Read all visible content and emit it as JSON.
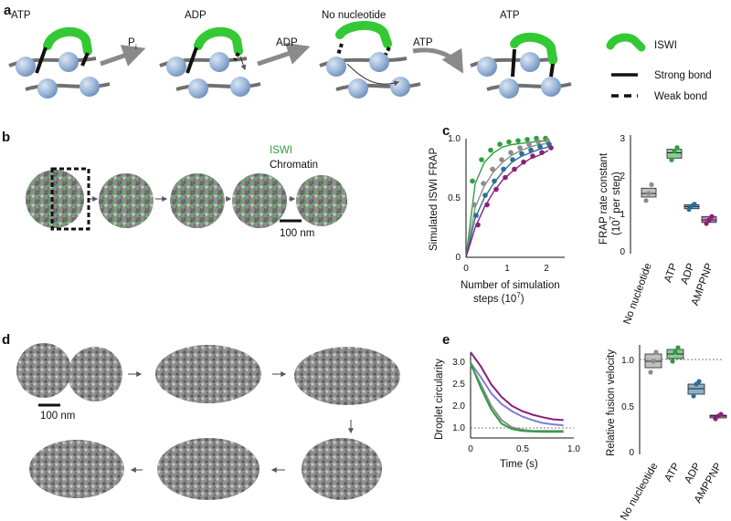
{
  "panel_a": {
    "letter": "a",
    "states": [
      "ATP",
      "ADP",
      "No nucleotide",
      "ATP"
    ],
    "arrow_labels": {
      "pi_main": "P",
      "pi_sub": "i",
      "adp": "ADP",
      "atp": "ATP"
    },
    "legend": {
      "iswi": "ISWI",
      "strong": "Strong bond",
      "weak": "Weak bond"
    }
  },
  "panel_b": {
    "letter": "b",
    "label_iswi": "ISWI",
    "label_chromatin": "Chromatin",
    "scale_bar": "100 nm"
  },
  "panel_c": {
    "letter": "c",
    "left_chart": {
      "ylabel": "Simulated ISWI FRAP",
      "xlabel_line1": "Number of simulation",
      "xlabel_line2": "steps (10",
      "xlabel_sup": "7",
      "xlabel_end": ")",
      "xticks": [
        "0",
        "1",
        "2"
      ],
      "yticks": [
        "0",
        "0.5",
        "1.0"
      ]
    },
    "right_chart": {
      "ylabel_line1": "FRAP rate constant",
      "ylabel_line2": "(10",
      "ylabel_sup": "7",
      "ylabel_end": " per step)",
      "yticks": [
        "0",
        "1",
        "2",
        "3"
      ],
      "categories": [
        "No nucleotide",
        "ATP",
        "ADP",
        "AMPPNP"
      ]
    }
  },
  "panel_d": {
    "letter": "d",
    "scale_bar": "100 nm"
  },
  "panel_e": {
    "letter": "e",
    "left_chart": {
      "ylabel": "Droplet circularity",
      "xlabel": "Time (s)",
      "xticks": [
        "0",
        "0.5",
        "1.0"
      ],
      "yticks": [
        "1.0",
        "1.5",
        "2.0",
        "2.5",
        "3.0"
      ]
    },
    "right_chart": {
      "ylabel": "Relative fusion velocity",
      "yticks": [
        "0",
        "0.5",
        "1.0"
      ],
      "categories": [
        "No nucleotide",
        "ATP",
        "ADP",
        "AMPPNP"
      ]
    }
  },
  "colors": {
    "no_nucleotide": "#8c8c8c",
    "atp": "#2e9e3e",
    "adp": "#2a6f97",
    "amppnp": "#8b1f7a",
    "iswi": "#34c934",
    "nucleosome": "#9ab6d8"
  },
  "chart_data": [
    {
      "type": "line",
      "panel": "c-left",
      "xlabel": "Number of simulation steps (10^7)",
      "ylabel": "Simulated ISWI FRAP",
      "xlim": [
        0,
        2.5
      ],
      "ylim": [
        0,
        1.0
      ],
      "series": [
        {
          "color": "#2e9e3e",
          "x": [
            0,
            0.25,
            0.5,
            0.75,
            1.0,
            1.25,
            1.5,
            1.75,
            2.0,
            2.25
          ],
          "values": [
            0,
            0.62,
            0.8,
            0.88,
            0.93,
            0.95,
            0.96,
            0.97,
            0.98,
            0.98
          ]
        },
        {
          "color": "#8c8c8c",
          "x": [
            0,
            0.25,
            0.5,
            0.75,
            1.0,
            1.25,
            1.5,
            1.75,
            2.0,
            2.25
          ],
          "values": [
            0,
            0.42,
            0.6,
            0.72,
            0.8,
            0.86,
            0.9,
            0.93,
            0.95,
            0.96
          ]
        },
        {
          "color": "#2a6f97",
          "x": [
            0,
            0.25,
            0.5,
            0.75,
            1.0,
            1.25,
            1.5,
            1.75,
            2.0,
            2.25
          ],
          "values": [
            0,
            0.33,
            0.5,
            0.62,
            0.72,
            0.8,
            0.85,
            0.88,
            0.91,
            0.93
          ]
        },
        {
          "color": "#8b1f7a",
          "x": [
            0,
            0.25,
            0.5,
            0.75,
            1.0,
            1.25,
            1.5,
            1.75,
            2.0,
            2.25
          ],
          "values": [
            0,
            0.25,
            0.42,
            0.55,
            0.65,
            0.72,
            0.78,
            0.83,
            0.86,
            0.9
          ]
        }
      ]
    },
    {
      "type": "box",
      "panel": "c-right",
      "ylabel": "FRAP rate constant (10^7 per step)",
      "ylim": [
        0,
        3.2
      ],
      "categories": [
        "No nucleotide",
        "ATP",
        "ADP",
        "AMPPNP"
      ],
      "colors": [
        "#8c8c8c",
        "#2e9e3e",
        "#2a6f97",
        "#8b1f7a"
      ],
      "box_low": [
        1.55,
        2.65,
        1.22,
        0.83
      ],
      "box_high": [
        1.8,
        2.9,
        1.33,
        1.0
      ],
      "median": [
        1.65,
        2.8,
        1.28,
        0.9
      ],
      "points": [
        [
          1.45,
          1.65,
          1.9
        ],
        [
          2.6,
          2.85,
          2.95
        ],
        [
          1.2,
          1.3,
          1.35
        ],
        [
          0.8,
          0.9,
          1.0
        ]
      ]
    },
    {
      "type": "line",
      "panel": "e-left",
      "xlabel": "Time (s)",
      "ylabel": "Droplet circularity",
      "xlim": [
        0,
        1.0
      ],
      "ylim": [
        0.8,
        3.2
      ],
      "series": [
        {
          "color": "#8b1f7a",
          "x": [
            0,
            0.1,
            0.2,
            0.3,
            0.4,
            0.5,
            0.6,
            0.7,
            0.8,
            0.9
          ],
          "values": [
            3.2,
            2.8,
            2.3,
            1.95,
            1.7,
            1.55,
            1.45,
            1.38,
            1.32,
            1.3
          ]
        },
        {
          "color": "#7b7fd6",
          "x": [
            0,
            0.1,
            0.2,
            0.3,
            0.4,
            0.5,
            0.6,
            0.7,
            0.8,
            0.9
          ],
          "values": [
            2.9,
            2.5,
            2.05,
            1.75,
            1.55,
            1.4,
            1.3,
            1.22,
            1.18,
            1.15
          ]
        },
        {
          "color": "#8c8c8c",
          "x": [
            0,
            0.1,
            0.2,
            0.3,
            0.4,
            0.5,
            0.6,
            0.7,
            0.8,
            0.9
          ],
          "values": [
            2.85,
            2.3,
            1.7,
            1.3,
            1.1,
            1.03,
            1.0,
            1.0,
            1.0,
            1.0
          ]
        },
        {
          "color": "#2e9e3e",
          "x": [
            0,
            0.1,
            0.2,
            0.3,
            0.4,
            0.5,
            0.6,
            0.7,
            0.8,
            0.9
          ],
          "values": [
            2.9,
            2.2,
            1.6,
            1.2,
            1.05,
            1.0,
            0.98,
            0.97,
            0.97,
            0.97
          ]
        }
      ]
    },
    {
      "type": "box",
      "panel": "e-right",
      "ylabel": "Relative fusion velocity",
      "ylim": [
        0,
        1.2
      ],
      "categories": [
        "No nucleotide",
        "ATP",
        "ADP",
        "AMPPNP"
      ],
      "colors": [
        "#8c8c8c",
        "#2e9e3e",
        "#2a6f97",
        "#8b1f7a"
      ],
      "box_low": [
        0.93,
        1.03,
        0.64,
        0.38
      ],
      "box_high": [
        1.08,
        1.13,
        0.75,
        0.41
      ],
      "median": [
        1.0,
        1.08,
        0.7,
        0.4
      ],
      "points": [
        [
          0.88,
          1.0,
          1.1
        ],
        [
          1.0,
          1.1,
          1.15
        ],
        [
          0.62,
          0.75,
          0.78
        ],
        [
          0.37,
          0.4,
          0.42
        ]
      ]
    }
  ]
}
